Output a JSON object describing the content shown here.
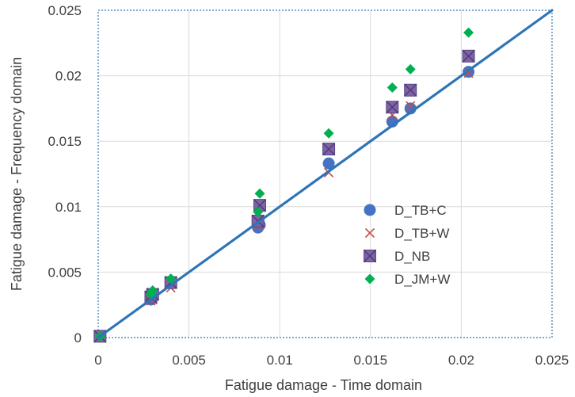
{
  "chart_data": {
    "type": "scatter",
    "title": "",
    "xlabel": "Fatigue damage - Time domain",
    "ylabel": "Fatigue damage - Frequency domain",
    "xlim": [
      0,
      0.025
    ],
    "ylim": [
      0,
      0.025
    ],
    "x_ticks": [
      0,
      0.005,
      0.01,
      0.015,
      0.02,
      0.025
    ],
    "y_ticks": [
      0,
      0.005,
      0.01,
      0.015,
      0.02,
      0.025
    ],
    "x_tick_labels": [
      "0",
      "0.005",
      "0.01",
      "0.015",
      "0.02",
      "0.025"
    ],
    "y_tick_labels": [
      "0",
      "0.005",
      "0.01",
      "0.015",
      "0.02",
      "0.025"
    ],
    "grid": true,
    "legend_position": "right",
    "reference_line": {
      "from": [
        0,
        0
      ],
      "to": [
        0.025,
        0.025
      ],
      "color": "#2E75B6"
    },
    "series": [
      {
        "name": "D_TB+C",
        "marker": "circle",
        "color": "#4472C4",
        "x": [
          0.0001,
          0.0029,
          0.003,
          0.004,
          0.0088,
          0.0089,
          0.0127,
          0.0162,
          0.0172,
          0.0204
        ],
        "y": [
          0.0001,
          0.0029,
          0.0031,
          0.0042,
          0.0084,
          0.0086,
          0.0133,
          0.0165,
          0.0175,
          0.0203
        ]
      },
      {
        "name": "D_TB+W",
        "marker": "x",
        "color": "#C0504D",
        "x": [
          0.0001,
          0.0029,
          0.003,
          0.004,
          0.0088,
          0.0089,
          0.0127,
          0.0162,
          0.0172,
          0.0204
        ],
        "y": [
          0.0001,
          0.0028,
          0.0029,
          0.0038,
          0.0085,
          0.0087,
          0.0126,
          0.017,
          0.0177,
          0.0202
        ]
      },
      {
        "name": "D_NB",
        "marker": "square-x",
        "color": "#7F63A6",
        "x": [
          0.0001,
          0.0029,
          0.003,
          0.004,
          0.0088,
          0.0089,
          0.0127,
          0.0162,
          0.0172,
          0.0204
        ],
        "y": [
          0.0001,
          0.0031,
          0.0033,
          0.0042,
          0.0089,
          0.0101,
          0.0144,
          0.0176,
          0.0189,
          0.0215
        ]
      },
      {
        "name": "D_JM+W",
        "marker": "diamond",
        "color": "#00B050",
        "x": [
          0.0001,
          0.0029,
          0.003,
          0.004,
          0.0088,
          0.0089,
          0.0127,
          0.0162,
          0.0172,
          0.0204
        ],
        "y": [
          0.0001,
          0.0033,
          0.0036,
          0.0045,
          0.0096,
          0.011,
          0.0156,
          0.0191,
          0.0205,
          0.0233
        ]
      }
    ]
  }
}
